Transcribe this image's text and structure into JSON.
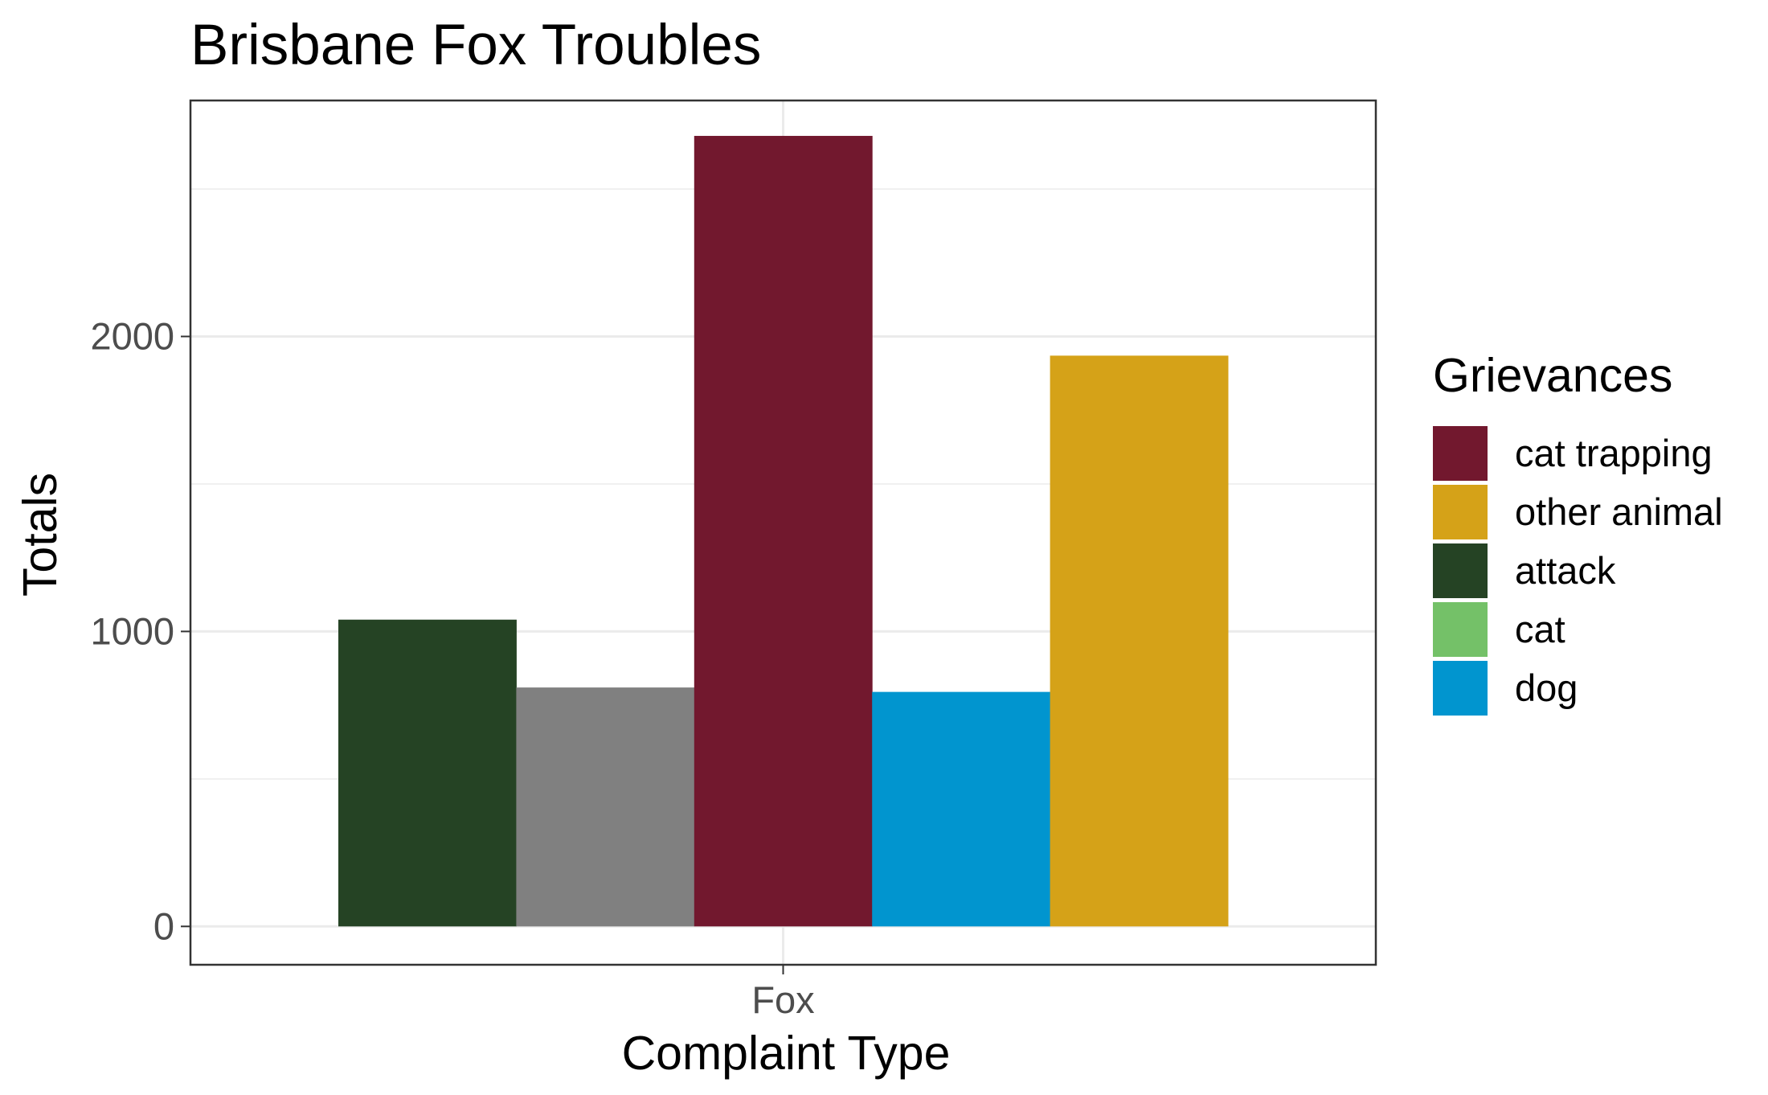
{
  "chart_data": {
    "type": "bar",
    "title": "Brisbane Fox Troubles",
    "xlabel": "Complaint Type",
    "ylabel": "Totals",
    "categories": [
      "Fox"
    ],
    "ylim": [
      -130,
      2800
    ],
    "yticks": [
      0,
      1000,
      2000
    ],
    "grid": true,
    "series": [
      {
        "values": [
          1040
        ],
        "color": "#254324"
      },
      {
        "values": [
          810
        ],
        "color": "#808080"
      },
      {
        "values": [
          2680
        ],
        "color": "#72182e"
      },
      {
        "values": [
          795
        ],
        "color": "#0195cf"
      },
      {
        "values": [
          1935
        ],
        "color": "#d5a218"
      }
    ],
    "legend": {
      "title": "Grievances",
      "placement": "right",
      "items": [
        {
          "label": "cat trapping",
          "color": "#72182e"
        },
        {
          "label": "other animal",
          "color": "#d5a218"
        },
        {
          "label": "attack",
          "color": "#254324"
        },
        {
          "label": "cat",
          "color": "#74c168"
        },
        {
          "label": "dog",
          "color": "#0195cf"
        }
      ]
    }
  }
}
